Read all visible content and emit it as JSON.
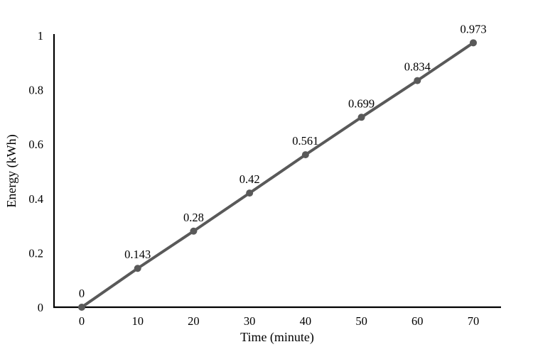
{
  "chart_data": {
    "type": "line",
    "title": "",
    "xlabel": "Time (minute)",
    "ylabel": "Energy (kWh)",
    "x": [
      0,
      10,
      20,
      30,
      40,
      50,
      60,
      70
    ],
    "values": [
      0,
      0.143,
      0.28,
      0.42,
      0.561,
      0.699,
      0.834,
      0.973
    ],
    "point_labels": [
      "0",
      "0.143",
      "0.28",
      "0.42",
      "0.561",
      "0.699",
      "0.834",
      "0.973"
    ],
    "x_tick_labels": [
      "0",
      "10",
      "20",
      "30",
      "40",
      "50",
      "60",
      "70"
    ],
    "y_tick_labels": [
      "0",
      "0.2",
      "0.4",
      "0.6",
      "0.8",
      "1"
    ],
    "y_tick_values": [
      0,
      0.2,
      0.4,
      0.6,
      0.8,
      1
    ],
    "ylim": [
      0,
      1
    ],
    "xlim": [
      0,
      70
    ],
    "grid": false,
    "legend": "none",
    "series_name": "Energy",
    "colors": {
      "line": "#595959",
      "marker": "#595959",
      "axis": "#000000",
      "text": "#000000",
      "background": "#ffffff"
    }
  }
}
